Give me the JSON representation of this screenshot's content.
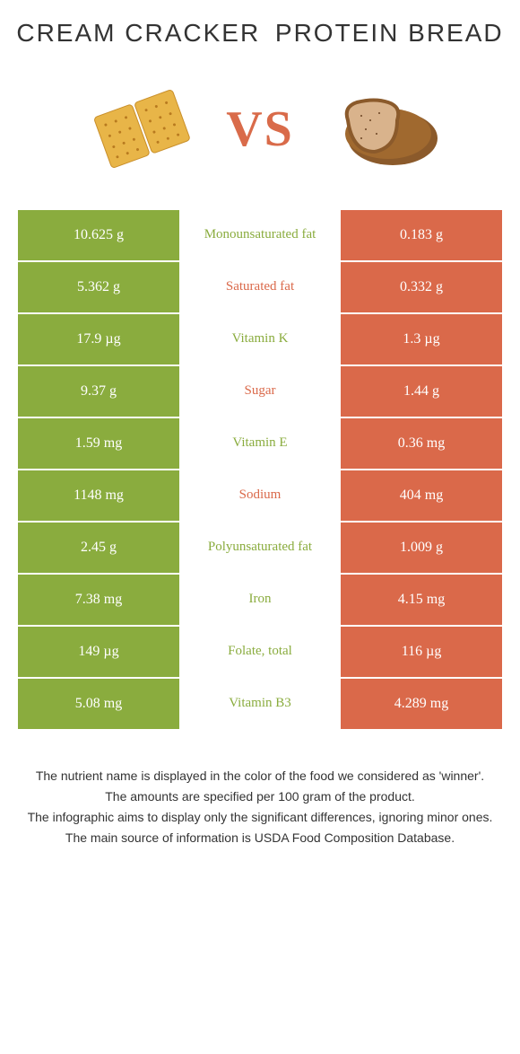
{
  "colors": {
    "green": "#8aac3e",
    "orange": "#da694a",
    "mid_green_text": "#8aac3e",
    "mid_orange_text": "#da694a"
  },
  "left": {
    "title": "CREAM CRACKER"
  },
  "right": {
    "title": "PROTEIN BREAD"
  },
  "vs": "VS",
  "rows": [
    {
      "left": "10.625 g",
      "label": "Monounsaturated fat",
      "right": "0.183 g",
      "winner": "left"
    },
    {
      "left": "5.362 g",
      "label": "Saturated fat",
      "right": "0.332 g",
      "winner": "right"
    },
    {
      "left": "17.9 µg",
      "label": "Vitamin K",
      "right": "1.3 µg",
      "winner": "left"
    },
    {
      "left": "9.37 g",
      "label": "Sugar",
      "right": "1.44 g",
      "winner": "right"
    },
    {
      "left": "1.59 mg",
      "label": "Vitamin E",
      "right": "0.36 mg",
      "winner": "left"
    },
    {
      "left": "1148 mg",
      "label": "Sodium",
      "right": "404 mg",
      "winner": "right"
    },
    {
      "left": "2.45 g",
      "label": "Polyunsaturated fat",
      "right": "1.009 g",
      "winner": "left"
    },
    {
      "left": "7.38 mg",
      "label": "Iron",
      "right": "4.15 mg",
      "winner": "left"
    },
    {
      "left": "149 µg",
      "label": "Folate, total",
      "right": "116 µg",
      "winner": "left"
    },
    {
      "left": "5.08 mg",
      "label": "Vitamin B3",
      "right": "4.289 mg",
      "winner": "left"
    }
  ],
  "footer": [
    "The nutrient name is displayed in the color of the food we considered as 'winner'.",
    "The amounts are specified per 100 gram of the product.",
    "The infographic aims to display only the significant differences, ignoring minor ones.",
    "The main source of information is USDA Food Composition Database."
  ]
}
